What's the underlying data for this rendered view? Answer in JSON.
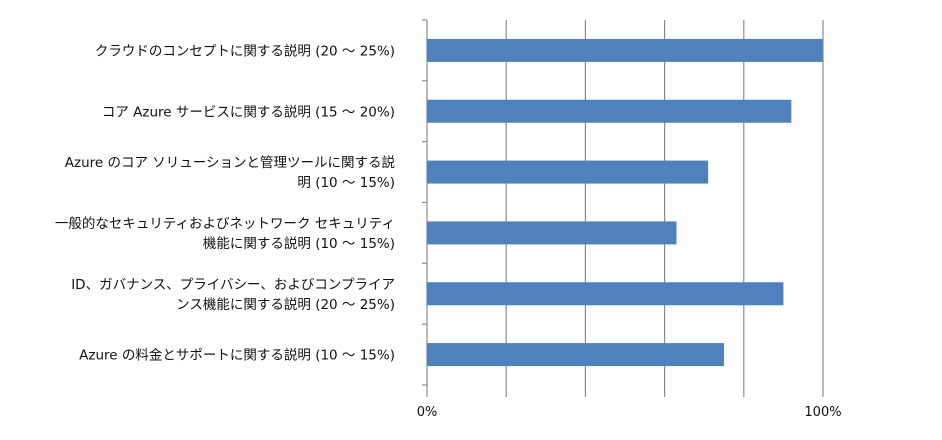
{
  "chart_data": {
    "type": "bar",
    "orientation": "horizontal",
    "categories": [
      [
        "クラウドのコンセプトに関する説明 (20 ～ 25%)"
      ],
      [
        "コア Azure サービスに関する説明 (15 ～ 20%)"
      ],
      [
        "Azure のコア ソリューションと管理ツールに関する説",
        "明 (10 ～ 15%)"
      ],
      [
        "一般的なセキュリティおよびネットワーク セキュリティ",
        "機能に関する説明 (10 ～ 15%)"
      ],
      [
        "ID、ガバナンス、プライバシー、およびコンプライア",
        "ンス機能に関する説明 (20 ～ 25%)"
      ],
      [
        "Azure の料金とサポートに関する説明 (10 ～ 15%)"
      ]
    ],
    "values": [
      100,
      92,
      71,
      63,
      90,
      75
    ],
    "xlim": [
      0,
      100
    ],
    "xticks": [
      {
        "value": 0,
        "label": "0%"
      },
      {
        "value": 100,
        "label": "100%"
      }
    ],
    "gridline_values": [
      0,
      20,
      40,
      60,
      80,
      100
    ],
    "bar_color": "#4f81bd",
    "grid_color": "#8c8c8c",
    "grid": true,
    "legend": "none"
  }
}
